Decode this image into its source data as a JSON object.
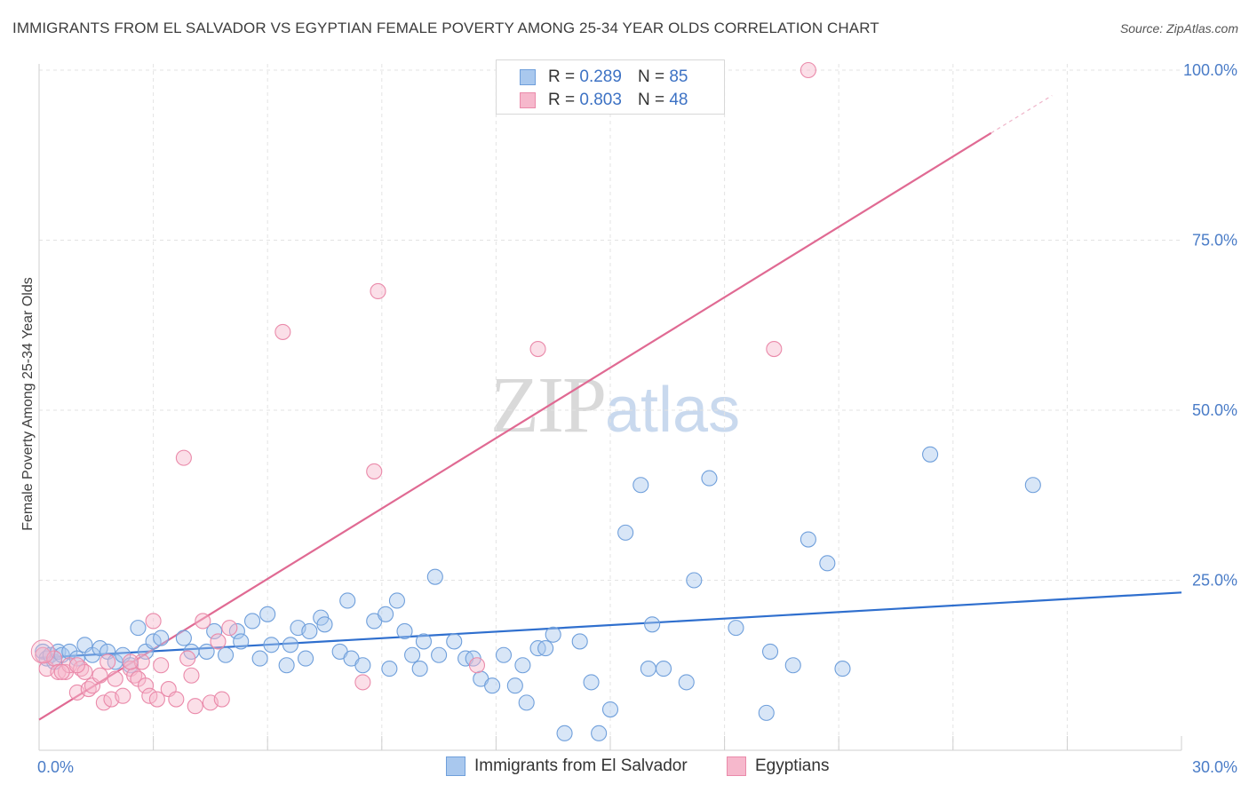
{
  "title": "IMMIGRANTS FROM EL SALVADOR VS EGYPTIAN FEMALE POVERTY AMONG 25-34 YEAR OLDS CORRELATION CHART",
  "source": "Source: ZipAtlas.com",
  "watermark": {
    "zip": "ZIP",
    "atlas": "atlas"
  },
  "legend": {
    "rows": [
      {
        "r_label": "R =",
        "r_value": "0.289",
        "n_label": "N =",
        "n_value": "85"
      },
      {
        "r_label": "R =",
        "r_value": "0.803",
        "n_label": "N =",
        "n_value": "48"
      }
    ]
  },
  "colors": {
    "blue_fill": "#a9c8ee",
    "blue_stroke": "#6f9fdb",
    "blue_line": "#2f6fce",
    "pink_fill": "#f6b8cc",
    "pink_stroke": "#ea8aaa",
    "pink_line": "#e06a93",
    "grid": "#e3e3e3",
    "tick": "#4a7cc7"
  },
  "chart_data": {
    "type": "scatter",
    "title": "IMMIGRANTS FROM EL SALVADOR VS EGYPTIAN FEMALE POVERTY AMONG 25-34 YEAR OLDS CORRELATION CHART",
    "xlabel": "",
    "ylabel": "Female Poverty Among 25-34 Year Olds",
    "xlim": [
      0,
      30
    ],
    "ylim": [
      0,
      103
    ],
    "y_ticks": [
      {
        "value": 25,
        "label": "25.0%"
      },
      {
        "value": 50,
        "label": "50.0%"
      },
      {
        "value": 75,
        "label": "75.0%"
      },
      {
        "value": 100,
        "label": "100.0%"
      }
    ],
    "x_ticks": [
      {
        "value": 0,
        "label": "0.0%"
      },
      {
        "value": 30,
        "label": "30.0%"
      }
    ],
    "series": [
      {
        "name": "Immigrants from El Salvador",
        "color": "blue",
        "trend": {
          "x0": 0,
          "y0": 13.6,
          "x1": 30,
          "y1": 23.2,
          "solid_until": 30
        },
        "points": [
          [
            0.1,
            14.5
          ],
          [
            0.2,
            13.5
          ],
          [
            0.3,
            14
          ],
          [
            0.4,
            13
          ],
          [
            0.5,
            14.5
          ],
          [
            0.6,
            14
          ],
          [
            0.8,
            14.5
          ],
          [
            1.0,
            13.5
          ],
          [
            1.2,
            15.5
          ],
          [
            1.4,
            14
          ],
          [
            1.6,
            15
          ],
          [
            1.8,
            14.5
          ],
          [
            2.0,
            13
          ],
          [
            2.2,
            14
          ],
          [
            2.4,
            12.5
          ],
          [
            2.6,
            18
          ],
          [
            2.8,
            14.5
          ],
          [
            3.0,
            16
          ],
          [
            3.2,
            16.5
          ],
          [
            3.8,
            16.5
          ],
          [
            4.0,
            14.5
          ],
          [
            4.4,
            14.5
          ],
          [
            4.6,
            17.5
          ],
          [
            4.9,
            14
          ],
          [
            5.2,
            17.5
          ],
          [
            5.3,
            16
          ],
          [
            5.6,
            19
          ],
          [
            5.8,
            13.5
          ],
          [
            6.0,
            20
          ],
          [
            6.1,
            15.5
          ],
          [
            6.5,
            12.5
          ],
          [
            6.6,
            15.5
          ],
          [
            6.8,
            18
          ],
          [
            7.0,
            13.5
          ],
          [
            7.1,
            17.5
          ],
          [
            7.4,
            19.5
          ],
          [
            7.5,
            18.5
          ],
          [
            7.9,
            14.5
          ],
          [
            8.1,
            22
          ],
          [
            8.2,
            13.5
          ],
          [
            8.5,
            12.5
          ],
          [
            8.8,
            19
          ],
          [
            9.1,
            20
          ],
          [
            9.2,
            12
          ],
          [
            9.4,
            22
          ],
          [
            9.6,
            17.5
          ],
          [
            9.8,
            14
          ],
          [
            10.0,
            12
          ],
          [
            10.1,
            16
          ],
          [
            10.4,
            25.5
          ],
          [
            10.5,
            14
          ],
          [
            10.9,
            16
          ],
          [
            11.2,
            13.5
          ],
          [
            11.4,
            13.5
          ],
          [
            11.6,
            10.5
          ],
          [
            11.9,
            9.5
          ],
          [
            12.2,
            14
          ],
          [
            12.5,
            9.5
          ],
          [
            12.7,
            12.5
          ],
          [
            12.8,
            7
          ],
          [
            13.1,
            15
          ],
          [
            13.3,
            15
          ],
          [
            13.5,
            17
          ],
          [
            13.8,
            2.5
          ],
          [
            14.2,
            16
          ],
          [
            14.5,
            10
          ],
          [
            14.7,
            2.5
          ],
          [
            15.0,
            6
          ],
          [
            15.4,
            32
          ],
          [
            15.8,
            39
          ],
          [
            16.0,
            12
          ],
          [
            16.1,
            18.5
          ],
          [
            16.4,
            12
          ],
          [
            17.0,
            10
          ],
          [
            17.2,
            25
          ],
          [
            17.6,
            40
          ],
          [
            18.3,
            18
          ],
          [
            19.1,
            5.5
          ],
          [
            19.2,
            14.5
          ],
          [
            19.8,
            12.5
          ],
          [
            20.2,
            31
          ],
          [
            20.7,
            27.5
          ],
          [
            21.1,
            12
          ],
          [
            23.4,
            43.5
          ],
          [
            26.1,
            39
          ]
        ]
      },
      {
        "name": "Egyptians",
        "color": "pink",
        "trend": {
          "x0": 0,
          "y0": 4.5,
          "x1": 30,
          "y1": 108,
          "solid_until": 25
        },
        "points": [
          [
            0.1,
            14
          ],
          [
            0.2,
            12
          ],
          [
            0.4,
            13.5
          ],
          [
            0.5,
            11.5
          ],
          [
            0.7,
            11.5
          ],
          [
            0.8,
            12.5
          ],
          [
            1.0,
            8.5
          ],
          [
            1.1,
            12
          ],
          [
            1.2,
            11.5
          ],
          [
            1.3,
            9
          ],
          [
            1.4,
            9.5
          ],
          [
            1.6,
            11
          ],
          [
            1.7,
            7
          ],
          [
            1.8,
            13
          ],
          [
            1.9,
            7.5
          ],
          [
            2.0,
            10.5
          ],
          [
            2.2,
            8
          ],
          [
            2.4,
            12
          ],
          [
            2.5,
            11
          ],
          [
            2.6,
            10.5
          ],
          [
            2.7,
            13
          ],
          [
            2.8,
            9.5
          ],
          [
            2.9,
            8
          ],
          [
            3.0,
            19
          ],
          [
            3.1,
            7.5
          ],
          [
            3.2,
            12.5
          ],
          [
            3.4,
            9
          ],
          [
            3.6,
            7.5
          ],
          [
            3.8,
            43
          ],
          [
            3.9,
            13.5
          ],
          [
            4.0,
            11
          ],
          [
            4.1,
            6.5
          ],
          [
            4.3,
            19
          ],
          [
            4.5,
            7
          ],
          [
            4.7,
            16
          ],
          [
            4.8,
            7.5
          ],
          [
            5.0,
            18
          ],
          [
            6.4,
            61.5
          ],
          [
            8.9,
            67.5
          ],
          [
            8.8,
            41
          ],
          [
            13.1,
            59
          ],
          [
            11.5,
            12.5
          ],
          [
            8.5,
            10
          ],
          [
            19.3,
            59
          ],
          [
            20.2,
            100
          ],
          [
            2.4,
            13
          ],
          [
            1.0,
            12.5
          ],
          [
            0.6,
            11.5
          ]
        ]
      }
    ]
  }
}
